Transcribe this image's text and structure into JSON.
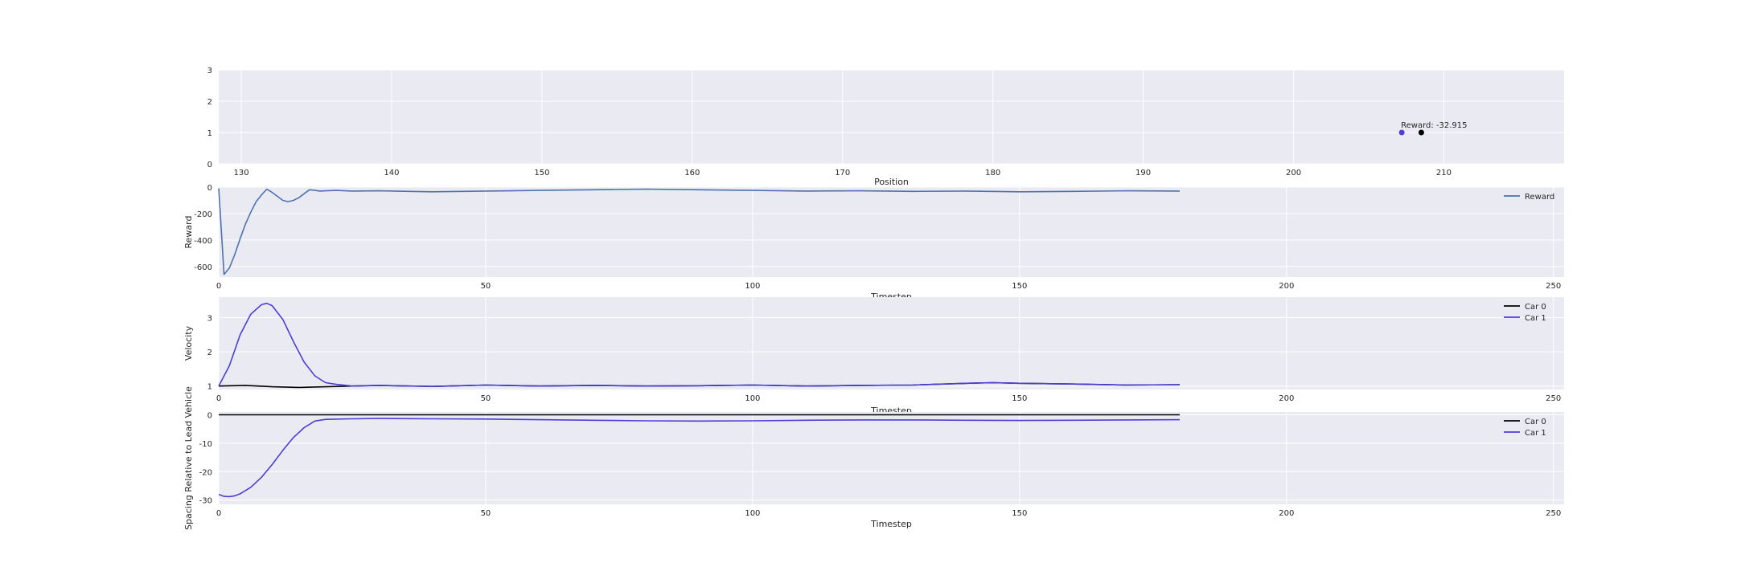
{
  "colors": {
    "background": "#ffffff",
    "axes_bg": "#eaeaf2",
    "grid": "#ffffff",
    "text": "#262626",
    "reward_line": "#4c72b0",
    "car0": "#000000",
    "car1": "#4b3fd6"
  },
  "chart_data": [
    {
      "type": "scatter",
      "xlabel": "Position",
      "ylabel": "",
      "xlim": [
        128.5,
        218
      ],
      "ylim": [
        0,
        3
      ],
      "xticks": [
        "130",
        "140",
        "150",
        "160",
        "170",
        "180",
        "190",
        "200",
        "210"
      ],
      "yticks": [
        "0",
        "1",
        "2",
        "3"
      ],
      "annotation": "Reward: -32.915",
      "points": [
        {
          "x": 207.2,
          "y": 1,
          "color": "#4b3fd6"
        },
        {
          "x": 208.5,
          "y": 1,
          "color": "#000000"
        }
      ]
    },
    {
      "type": "line",
      "xlabel": "Timestep",
      "ylabel": "Reward",
      "xlim": [
        0,
        252
      ],
      "ylim": [
        -680,
        0
      ],
      "xticks": [
        "0",
        "50",
        "100",
        "150",
        "200",
        "250"
      ],
      "yticks": [
        "0",
        "-200",
        "-400",
        "-600"
      ],
      "legend_position": "top-right",
      "series": [
        {
          "name": "Reward",
          "color": "#4c72b0",
          "x": [
            0,
            1,
            2,
            3,
            4,
            5,
            6,
            7,
            8,
            9,
            10,
            11,
            12,
            13,
            14,
            15,
            16,
            17,
            18,
            19,
            20,
            22,
            25,
            30,
            40,
            50,
            60,
            70,
            80,
            90,
            100,
            110,
            120,
            130,
            140,
            150,
            160,
            170,
            180
          ],
          "y": [
            -10,
            -660,
            -610,
            -510,
            -390,
            -280,
            -190,
            -110,
            -60,
            -15,
            -40,
            -70,
            -100,
            -110,
            -100,
            -80,
            -50,
            -20,
            -25,
            -30,
            -28,
            -25,
            -30,
            -28,
            -35,
            -30,
            -25,
            -20,
            -15,
            -20,
            -25,
            -30,
            -28,
            -32,
            -30,
            -35,
            -32,
            -28,
            -30
          ]
        }
      ]
    },
    {
      "type": "line",
      "xlabel": "Timestep",
      "ylabel": "Velocity",
      "xlim": [
        0,
        252
      ],
      "ylim": [
        0.9,
        3.6
      ],
      "xticks": [
        "0",
        "50",
        "100",
        "150",
        "200",
        "250"
      ],
      "yticks": [
        "1",
        "2",
        "3"
      ],
      "legend_position": "top-right",
      "series": [
        {
          "name": "Car 0",
          "color": "#000000",
          "x": [
            0,
            5,
            10,
            15,
            20,
            25,
            30,
            40,
            50,
            60,
            70,
            80,
            90,
            100,
            110,
            120,
            130,
            140,
            145,
            150,
            160,
            170,
            180
          ],
          "y": [
            1.0,
            1.02,
            0.98,
            0.96,
            0.98,
            1.0,
            1.02,
            0.99,
            1.03,
            1.0,
            1.02,
            1.0,
            1.01,
            1.03,
            1.0,
            1.02,
            1.03,
            1.08,
            1.1,
            1.08,
            1.06,
            1.03,
            1.04
          ]
        },
        {
          "name": "Car 1",
          "color": "#4b3fd6",
          "x": [
            0,
            2,
            4,
            6,
            8,
            9,
            10,
            12,
            14,
            16,
            18,
            20,
            22,
            25,
            30,
            40,
            50,
            60,
            70,
            80,
            90,
            100,
            110,
            120,
            130,
            140,
            145,
            150,
            160,
            170,
            180
          ],
          "y": [
            1.0,
            1.6,
            2.5,
            3.1,
            3.38,
            3.42,
            3.35,
            2.95,
            2.3,
            1.7,
            1.3,
            1.1,
            1.05,
            1.0,
            1.02,
            0.99,
            1.03,
            1.0,
            1.02,
            1.0,
            1.01,
            1.03,
            1.0,
            1.02,
            1.03,
            1.08,
            1.1,
            1.08,
            1.06,
            1.03,
            1.04
          ]
        }
      ]
    },
    {
      "type": "line",
      "xlabel": "Timestep",
      "ylabel": "Spacing Relative to Lead Vehicle",
      "xlim": [
        0,
        252
      ],
      "ylim": [
        -31.5,
        1
      ],
      "xticks": [
        "0",
        "50",
        "100",
        "150",
        "200",
        "250"
      ],
      "yticks": [
        "0",
        "-10",
        "-20",
        "-30"
      ],
      "legend_position": "top-right",
      "series": [
        {
          "name": "Car 0",
          "color": "#000000",
          "x": [
            0,
            180
          ],
          "y": [
            0,
            0
          ]
        },
        {
          "name": "Car 1",
          "color": "#4b3fd6",
          "x": [
            0,
            1,
            2,
            3,
            4,
            6,
            8,
            10,
            12,
            14,
            16,
            18,
            20,
            25,
            30,
            40,
            50,
            60,
            70,
            80,
            90,
            100,
            110,
            120,
            130,
            140,
            150,
            160,
            170,
            180
          ],
          "y": [
            -28,
            -28.7,
            -28.8,
            -28.5,
            -27.8,
            -25.5,
            -22,
            -17.5,
            -12.5,
            -8,
            -4.5,
            -2.2,
            -1.6,
            -1.4,
            -1.3,
            -1.4,
            -1.5,
            -1.7,
            -1.9,
            -2.1,
            -2.2,
            -2.1,
            -1.9,
            -1.8,
            -1.8,
            -1.9,
            -2.0,
            -1.9,
            -1.8,
            -1.7
          ]
        }
      ]
    }
  ]
}
